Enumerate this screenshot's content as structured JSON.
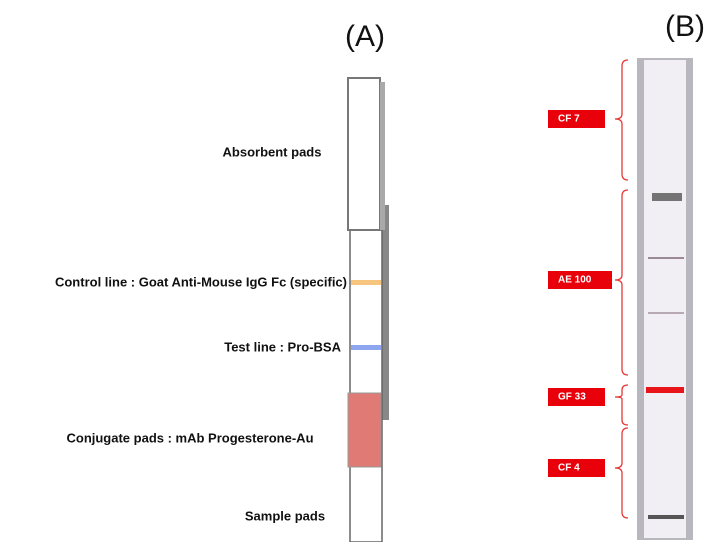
{
  "panel_a": {
    "label": "(A)",
    "parts": [
      "Absorbent pads",
      "Control line : Goat Anti-Mouse IgG Fc (specific)",
      "Test line : Pro-BSA",
      "Conjugate pads : mAb Progesterone-Au",
      "Sample pads"
    ]
  },
  "panel_b": {
    "label": "(B)",
    "zones": [
      "CF 7",
      "AE 100",
      "GF 33",
      "CF 4"
    ]
  }
}
